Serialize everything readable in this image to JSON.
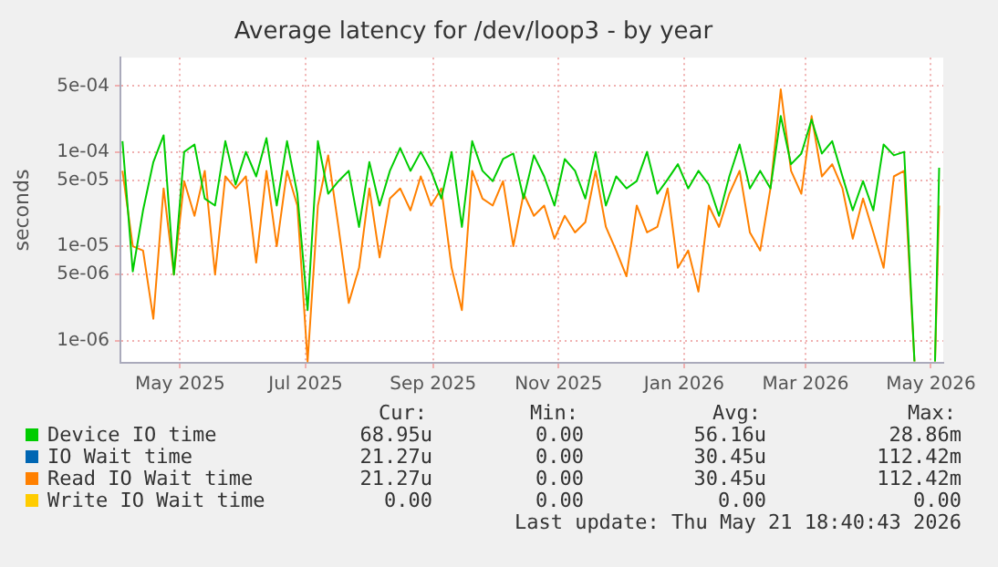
{
  "chart_data": {
    "type": "line",
    "title": "Average latency for /dev/loop3 - by year",
    "ylabel": "seconds",
    "log": "y",
    "grid": true,
    "legend": "bottom",
    "xlim": [
      "2025-04-02",
      "2026-05-07"
    ],
    "xticks": [
      {
        "value": "2025-05-01",
        "label": "May 2025"
      },
      {
        "value": "2025-07-01",
        "label": "Jul 2025"
      },
      {
        "value": "2025-09-01",
        "label": "Sep 2025"
      },
      {
        "value": "2025-11-01",
        "label": "Nov 2025"
      },
      {
        "value": "2026-01-01",
        "label": "Jan 2026"
      },
      {
        "value": "2026-03-01",
        "label": "Mar 2026"
      },
      {
        "value": "2026-05-01",
        "label": "May 2026"
      }
    ],
    "ylim": [
      5.8e-07,
      0.001
    ],
    "yticks": [
      {
        "value": 1e-06,
        "label": "1e-06"
      },
      {
        "value": 5e-06,
        "label": "5e-06"
      },
      {
        "value": 1e-05,
        "label": "1e-05"
      },
      {
        "value": 5e-05,
        "label": "5e-05"
      },
      {
        "value": 0.0001,
        "label": "1e-04"
      },
      {
        "value": 0.0005,
        "label": "5e-04"
      }
    ],
    "x": [
      "2025-04-03",
      "2025-04-08",
      "2025-04-13",
      "2025-04-18",
      "2025-04-23",
      "2025-04-28",
      "2025-05-03",
      "2025-05-08",
      "2025-05-13",
      "2025-05-18",
      "2025-05-23",
      "2025-05-28",
      "2025-06-02",
      "2025-06-07",
      "2025-06-12",
      "2025-06-17",
      "2025-06-22",
      "2025-06-27",
      "2025-07-02",
      "2025-07-07",
      "2025-07-12",
      "2025-07-17",
      "2025-07-22",
      "2025-07-27",
      "2025-08-01",
      "2025-08-06",
      "2025-08-11",
      "2025-08-16",
      "2025-08-21",
      "2025-08-26",
      "2025-08-31",
      "2025-09-05",
      "2025-09-10",
      "2025-09-15",
      "2025-09-20",
      "2025-09-25",
      "2025-09-30",
      "2025-10-05",
      "2025-10-10",
      "2025-10-15",
      "2025-10-20",
      "2025-10-25",
      "2025-10-30",
      "2025-11-04",
      "2025-11-09",
      "2025-11-14",
      "2025-11-19",
      "2025-11-24",
      "2025-11-29",
      "2025-12-04",
      "2025-12-09",
      "2025-12-14",
      "2025-12-19",
      "2025-12-24",
      "2025-12-29",
      "2026-01-03",
      "2026-01-08",
      "2026-01-13",
      "2026-01-18",
      "2026-01-23",
      "2026-01-28",
      "2026-02-02",
      "2026-02-07",
      "2026-02-12",
      "2026-02-17",
      "2026-02-22",
      "2026-02-27",
      "2026-03-04",
      "2026-03-09",
      "2026-03-14",
      "2026-03-19",
      "2026-03-24",
      "2026-03-29",
      "2026-04-03",
      "2026-04-08",
      "2026-04-13",
      "2026-04-18",
      "2026-04-23",
      "2026-04-28",
      "2026-05-03",
      "2026-05-05"
    ],
    "series": [
      {
        "name": "Device IO time",
        "color": "#00cc00",
        "values": [
          0.00013,
          5.4e-06,
          2.4e-05,
          7.8e-05,
          0.00015,
          5e-06,
          0.0001,
          0.00012,
          3.2e-05,
          2.7e-05,
          0.00013,
          4.5e-05,
          0.0001,
          5.5e-05,
          0.00014,
          2.7e-05,
          0.00013,
          3.6e-05,
          2.1e-06,
          0.00013,
          3.6e-05,
          4.9e-05,
          6.3e-05,
          1.6e-05,
          7.8e-05,
          2.7e-05,
          6.3e-05,
          0.00011,
          6.3e-05,
          0.0001,
          6.3e-05,
          3.2e-05,
          0.0001,
          1.6e-05,
          0.00013,
          6.3e-05,
          4.9e-05,
          8.4e-05,
          9.6e-05,
          3.2e-05,
          9.2e-05,
          5.5e-05,
          2.7e-05,
          8.4e-05,
          6.3e-05,
          3.2e-05,
          0.0001,
          2.7e-05,
          5.5e-05,
          4.1e-05,
          4.9e-05,
          0.0001,
          3.6e-05,
          5.1e-05,
          7.4e-05,
          4.1e-05,
          6.3e-05,
          4.5e-05,
          2.1e-05,
          5.5e-05,
          0.00012,
          4.1e-05,
          6.3e-05,
          4.1e-05,
          0.00024,
          7.4e-05,
          9.6e-05,
          0.00022,
          9.6e-05,
          0.00013,
          5.5e-05,
          2.4e-05,
          4.9e-05,
          2.4e-05,
          0.00012,
          9.2e-05,
          0.0001,
          6e-07,
          null,
          6e-07,
          6.8e-05
        ]
      },
      {
        "name": "IO Wait time",
        "color": "#0066b3",
        "values": [
          null,
          null,
          null,
          null,
          null,
          null,
          null,
          null,
          null,
          null,
          null,
          null,
          null,
          null,
          null,
          null,
          null,
          null,
          null,
          null,
          null,
          null,
          null,
          null,
          null,
          null,
          null,
          null,
          null,
          null,
          null,
          null,
          null,
          null,
          null,
          null,
          null,
          null,
          null,
          null,
          null,
          null,
          null,
          null,
          null,
          null,
          null,
          null,
          null,
          null,
          null,
          null,
          null,
          null,
          null,
          null,
          null,
          null,
          null,
          null,
          null,
          null,
          null,
          null,
          null,
          null,
          null,
          null,
          null,
          null,
          null,
          null,
          null,
          null,
          null,
          null,
          null,
          null,
          null,
          null,
          null
        ]
      },
      {
        "name": "Read IO Wait time",
        "color": "#ff8000",
        "values": [
          6.3e-05,
          1e-05,
          9e-06,
          1.7e-06,
          4.1e-05,
          5e-06,
          4.9e-05,
          2.1e-05,
          6.3e-05,
          5e-06,
          5.5e-05,
          4.1e-05,
          5.5e-05,
          6.7e-06,
          6.3e-05,
          1e-05,
          6.3e-05,
          2.7e-05,
          6e-07,
          2.7e-05,
          9.2e-05,
          1.6e-05,
          2.5e-06,
          5.9e-06,
          4.1e-05,
          7.6e-06,
          3.2e-05,
          4.1e-05,
          2.4e-05,
          5.5e-05,
          2.7e-05,
          4.1e-05,
          5.9e-06,
          2.1e-06,
          6.3e-05,
          3.2e-05,
          2.7e-05,
          4.9e-05,
          1e-05,
          3.6e-05,
          2.1e-05,
          2.7e-05,
          1.2e-05,
          2.1e-05,
          1.4e-05,
          1.8e-05,
          6.3e-05,
          1.6e-05,
          9e-06,
          4.8e-06,
          2.7e-05,
          1.4e-05,
          1.6e-05,
          4.1e-05,
          5.9e-06,
          9e-06,
          3.3e-06,
          2.7e-05,
          1.6e-05,
          3.6e-05,
          6.3e-05,
          1.4e-05,
          9e-06,
          4.1e-05,
          0.00046,
          6.3e-05,
          3.6e-05,
          0.00024,
          5.5e-05,
          7.4e-05,
          4.1e-05,
          1.2e-05,
          3.2e-05,
          1.4e-05,
          5.9e-06,
          5.5e-05,
          6.3e-05,
          6e-07,
          null,
          6e-07,
          2.7e-05
        ]
      },
      {
        "name": "Write IO Wait time",
        "color": "#ffcc00",
        "values": [
          null,
          null,
          null,
          null,
          null,
          null,
          null,
          null,
          null,
          null,
          null,
          null,
          null,
          null,
          null,
          null,
          null,
          null,
          null,
          null,
          null,
          null,
          null,
          null,
          null,
          null,
          null,
          null,
          null,
          null,
          null,
          null,
          null,
          null,
          null,
          null,
          null,
          null,
          null,
          null,
          null,
          null,
          null,
          null,
          null,
          null,
          null,
          null,
          null,
          null,
          null,
          null,
          null,
          null,
          null,
          null,
          null,
          null,
          null,
          null,
          null,
          null,
          null,
          null,
          null,
          null,
          null,
          null,
          null,
          null,
          null,
          null,
          null,
          null,
          null,
          null,
          null,
          null,
          null,
          null,
          null
        ]
      }
    ],
    "annotations": [
      "Cur:",
      "Min:",
      "Avg:",
      "Max:",
      "68.95u",
      "0.00",
      "56.16u",
      "28.86m",
      "21.27u",
      "0.00",
      "30.45u",
      "112.42m",
      "21.27u",
      "0.00",
      "30.45u",
      "112.42m",
      "0.00",
      "0.00",
      "0.00",
      "0.00",
      "Last update: Thu May 21 18:40:43 2026"
    ]
  }
}
